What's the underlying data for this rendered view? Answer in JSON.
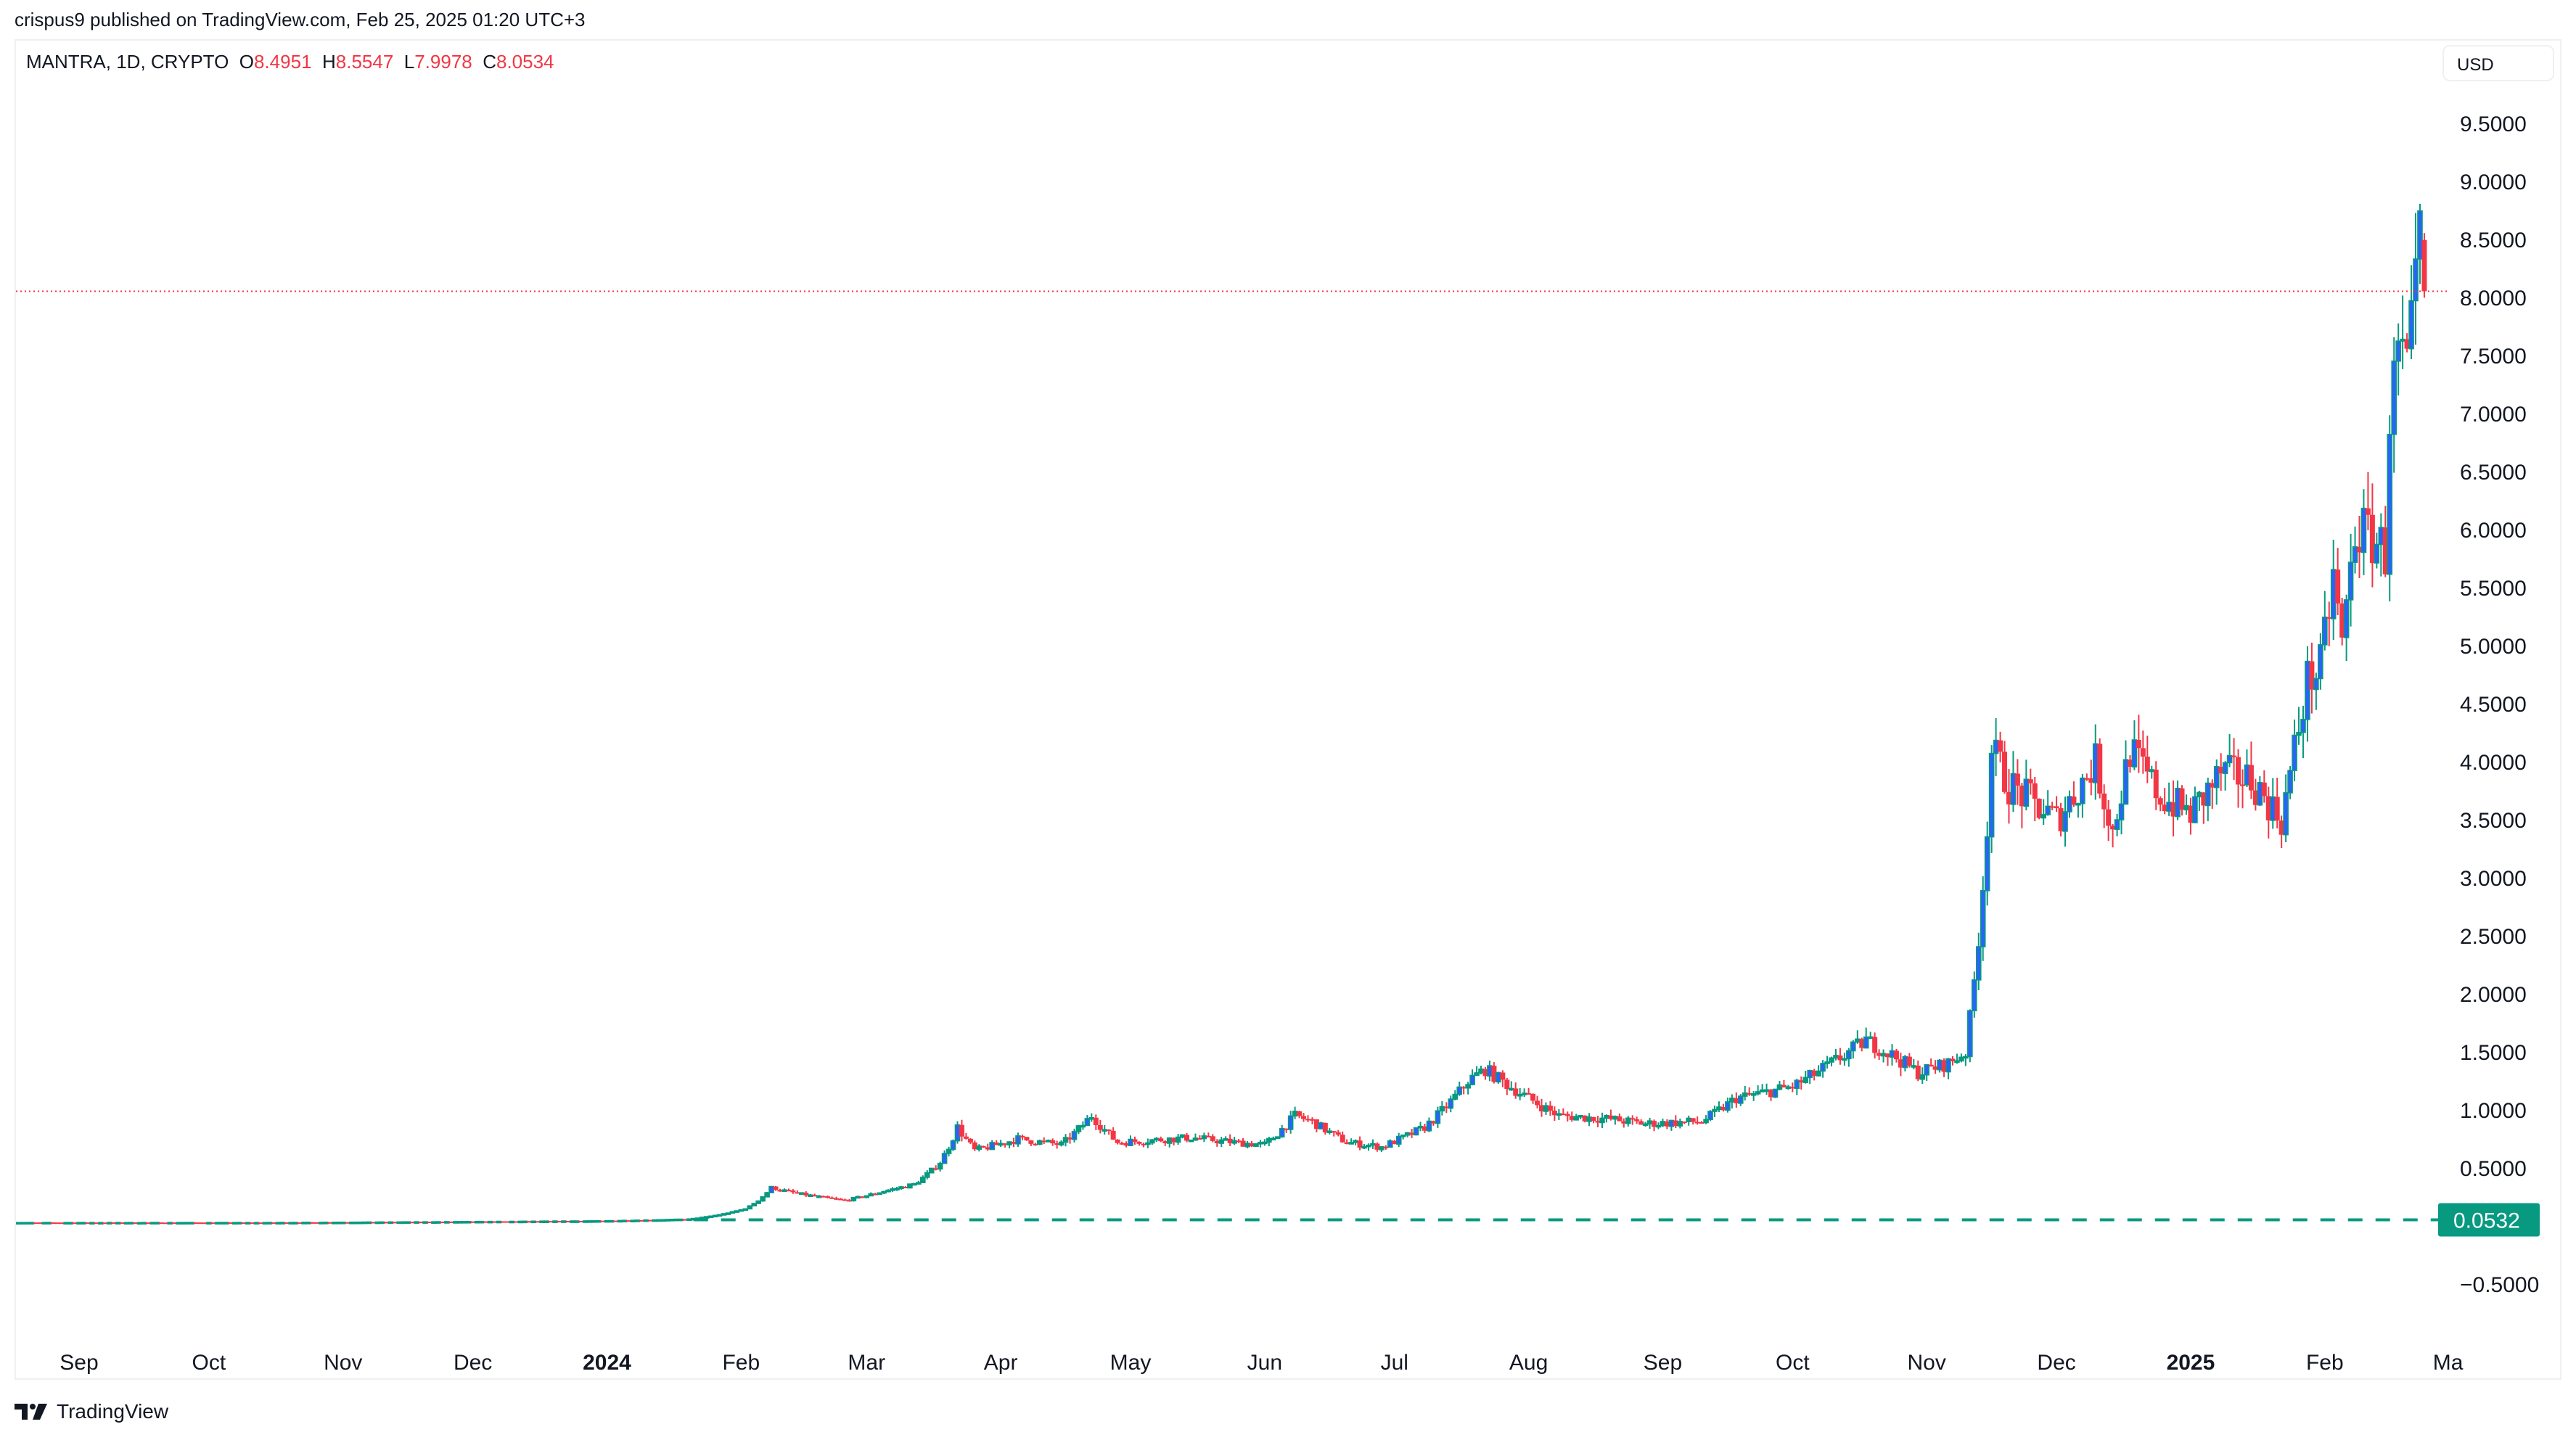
{
  "publisher_line": "crispus9 published on TradingView.com, Feb 25, 2025 01:20 UTC+3",
  "legend": {
    "symbol": "MANTRA, 1D, CRYPTO",
    "open_label": "O",
    "open": "8.4951",
    "high_label": "H",
    "high": "8.5547",
    "low_label": "L",
    "low": "7.9978",
    "close_label": "C",
    "close": "8.0534"
  },
  "currency_button": "USD",
  "footer_brand": "TradingView",
  "colors": {
    "up": "#089981",
    "down": "#f23645",
    "up_body": "#2962ff",
    "text": "#131722"
  },
  "chart_data": {
    "type": "candlestick",
    "interval": "1D",
    "y_ticks": [
      "9.5000",
      "9.0000",
      "8.5000",
      "8.0000",
      "7.5000",
      "7.0000",
      "6.5000",
      "6.0000",
      "5.5000",
      "5.0000",
      "4.5000",
      "4.0000",
      "3.5000",
      "3.0000",
      "2.5000",
      "2.0000",
      "1.5000",
      "1.0000",
      "0.5000",
      "−0.5000"
    ],
    "y_tick_values": [
      9.5,
      9,
      8.5,
      8,
      7.5,
      7,
      6.5,
      6,
      5.5,
      5,
      4.5,
      4,
      3.5,
      3,
      2.5,
      2,
      1.5,
      1,
      0.5,
      -0.5
    ],
    "x_ticks": [
      {
        "label": "Sep",
        "date": "2023-09-01"
      },
      {
        "label": "Oct",
        "date": "2023-10-01"
      },
      {
        "label": "Nov",
        "date": "2023-11-01"
      },
      {
        "label": "Dec",
        "date": "2023-12-01"
      },
      {
        "label": "2024",
        "date": "2024-01-01",
        "bold": true
      },
      {
        "label": "Feb",
        "date": "2024-02-01"
      },
      {
        "label": "Mar",
        "date": "2024-03-01"
      },
      {
        "label": "Apr",
        "date": "2024-04-01"
      },
      {
        "label": "May",
        "date": "2024-05-01"
      },
      {
        "label": "Jun",
        "date": "2024-06-01"
      },
      {
        "label": "Jul",
        "date": "2024-07-01"
      },
      {
        "label": "Aug",
        "date": "2024-08-01"
      },
      {
        "label": "Sep",
        "date": "2024-09-01"
      },
      {
        "label": "Oct",
        "date": "2024-10-01"
      },
      {
        "label": "Nov",
        "date": "2024-11-01"
      },
      {
        "label": "Dec",
        "date": "2024-12-01"
      },
      {
        "label": "2025",
        "date": "2025-01-01",
        "bold": true
      },
      {
        "label": "Feb",
        "date": "2025-02-01"
      },
      {
        "label": "Ma",
        "date": "2025-03-01"
      }
    ],
    "ylim": [
      -0.94,
      10.47
    ],
    "xlim": [
      "2023-08-17",
      "2025-03-06"
    ],
    "approx_closes": [
      [
        "2023-08-17",
        0.03
      ],
      [
        "2023-10-15",
        0.03
      ],
      [
        "2023-12-31",
        0.045
      ],
      [
        "2024-01-20",
        0.06
      ],
      [
        "2024-02-02",
        0.15
      ],
      [
        "2024-02-08",
        0.33
      ],
      [
        "2024-02-14",
        0.28
      ],
      [
        "2024-02-25",
        0.22
      ],
      [
        "2024-03-05",
        0.3
      ],
      [
        "2024-03-12",
        0.36
      ],
      [
        "2024-03-18",
        0.55
      ],
      [
        "2024-03-22",
        0.85
      ],
      [
        "2024-03-26",
        0.65
      ],
      [
        "2024-04-05",
        0.75
      ],
      [
        "2024-04-15",
        0.7
      ],
      [
        "2024-04-22",
        0.95
      ],
      [
        "2024-04-28",
        0.72
      ],
      [
        "2024-05-15",
        0.76
      ],
      [
        "2024-05-25",
        0.72
      ],
      [
        "2024-06-01",
        0.7
      ],
      [
        "2024-06-08",
        0.95
      ],
      [
        "2024-06-12",
        0.9
      ],
      [
        "2024-06-20",
        0.72
      ],
      [
        "2024-06-28",
        0.68
      ],
      [
        "2024-07-08",
        0.85
      ],
      [
        "2024-07-18",
        1.25
      ],
      [
        "2024-07-22",
        1.35
      ],
      [
        "2024-08-01",
        1.1
      ],
      [
        "2024-08-08",
        0.95
      ],
      [
        "2024-08-20",
        0.92
      ],
      [
        "2024-08-28",
        0.88
      ],
      [
        "2024-09-10",
        0.9
      ],
      [
        "2024-09-18",
        1.1
      ],
      [
        "2024-10-01",
        1.2
      ],
      [
        "2024-10-10",
        1.4
      ],
      [
        "2024-10-18",
        1.6
      ],
      [
        "2024-10-25",
        1.45
      ],
      [
        "2024-10-30",
        1.32
      ],
      [
        "2024-11-06",
        1.4
      ],
      [
        "2024-11-10",
        1.5
      ],
      [
        "2024-11-13",
        2.5
      ],
      [
        "2024-11-16",
        4.1
      ],
      [
        "2024-11-20",
        3.8
      ],
      [
        "2024-12-01",
        3.5
      ],
      [
        "2024-12-10",
        4.0
      ],
      [
        "2024-12-14",
        3.4
      ],
      [
        "2024-12-18",
        4.1
      ],
      [
        "2024-12-25",
        3.7
      ],
      [
        "2025-01-01",
        3.55
      ],
      [
        "2025-01-08",
        3.9
      ],
      [
        "2025-01-15",
        3.85
      ],
      [
        "2025-01-22",
        3.5
      ],
      [
        "2025-01-25",
        4.1
      ],
      [
        "2025-01-28",
        4.7
      ],
      [
        "2025-01-31",
        4.8
      ],
      [
        "2025-02-03",
        5.6
      ],
      [
        "2025-02-05",
        5.0
      ],
      [
        "2025-02-08",
        6.0
      ],
      [
        "2025-02-13",
        5.9
      ],
      [
        "2025-02-15",
        5.8
      ],
      [
        "2025-02-16",
        7.0
      ],
      [
        "2025-02-18",
        7.5
      ],
      [
        "2025-02-20",
        7.3
      ],
      [
        "2025-02-22",
        8.0
      ],
      [
        "2025-02-23",
        8.5
      ]
    ],
    "last_candle": {
      "date": "2025-02-24",
      "open": 8.4951,
      "high": 8.5547,
      "low": 7.9978,
      "close": 8.0534
    },
    "last_price_line": 8.0534,
    "horizontal_line": {
      "value": 0.0532,
      "label": "0.0532",
      "from": "2024-01-21",
      "color": "#089981",
      "style": "dashed"
    },
    "grid": false
  }
}
